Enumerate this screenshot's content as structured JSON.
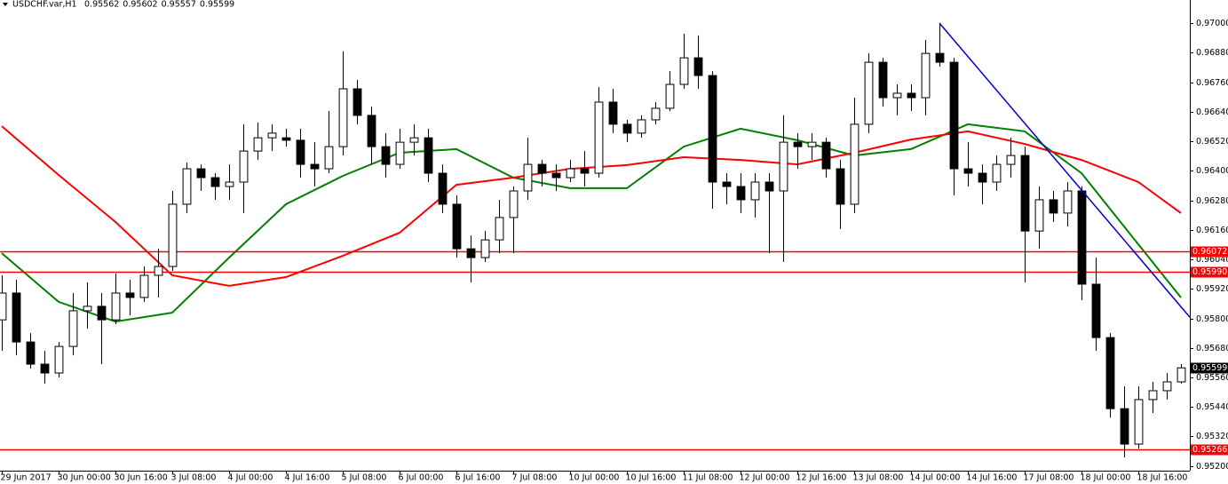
{
  "chart_data": {
    "type": "candlestick",
    "symbol": "USDCHF.var,H1",
    "header_values": [
      0.95562,
      0.95602,
      0.95557,
      0.95599
    ],
    "xlim": [
      -0.125,
      83.625
    ],
    "xticks": [
      {
        "value": 0,
        "label": "29 Jun 2017"
      },
      {
        "value": 4,
        "label": "30 Jun 00:00"
      },
      {
        "value": 8,
        "label": "30 Jun 16:00"
      },
      {
        "value": 12,
        "label": "3 Jul 08:00"
      },
      {
        "value": 16,
        "label": "4 Jul 00:00"
      },
      {
        "value": 20,
        "label": "4 Jul 16:00"
      },
      {
        "value": 24,
        "label": "5 Jul 08:00"
      },
      {
        "value": 28,
        "label": "6 Jul 00:00"
      },
      {
        "value": 32,
        "label": "6 Jul 16:00"
      },
      {
        "value": 36,
        "label": "7 Jul 08:00"
      },
      {
        "value": 40,
        "label": "10 Jul 00:00"
      },
      {
        "value": 44,
        "label": "10 Jul 16:00"
      },
      {
        "value": 48,
        "label": "11 Jul 08:00"
      },
      {
        "value": 52,
        "label": "12 Jul 00:00"
      },
      {
        "value": 56,
        "label": "12 Jul 16:00"
      },
      {
        "value": 60,
        "label": "13 Jul 08:00"
      },
      {
        "value": 64,
        "label": "14 Jul 00:00"
      },
      {
        "value": 68,
        "label": "14 Jul 16:00"
      },
      {
        "value": 72,
        "label": "17 Jul 08:00"
      },
      {
        "value": 76,
        "label": "18 Jul 00:00"
      },
      {
        "value": 80,
        "label": "18 Jul 16:00"
      }
    ],
    "ylim": [
      0.95181,
      0.97094
    ],
    "yticks": [
      {
        "value": 0.97,
        "label": "0.97000"
      },
      {
        "value": 0.9688,
        "label": "0.96880"
      },
      {
        "value": 0.9676,
        "label": "0.96760"
      },
      {
        "value": 0.9664,
        "label": "0.96640"
      },
      {
        "value": 0.9652,
        "label": "0.96520"
      },
      {
        "value": 0.964,
        "label": "0.96400"
      },
      {
        "value": 0.9628,
        "label": "0.96280"
      },
      {
        "value": 0.9616,
        "label": "0.96160"
      },
      {
        "value": 0.9604,
        "label": "0.96040"
      },
      {
        "value": 0.9592,
        "label": "0.95920"
      },
      {
        "value": 0.958,
        "label": "0.95800"
      },
      {
        "value": 0.9568,
        "label": "0.95680"
      },
      {
        "value": 0.9556,
        "label": "0.95560"
      },
      {
        "value": 0.9544,
        "label": "0.95440"
      },
      {
        "value": 0.9532,
        "label": "0.95320"
      },
      {
        "value": 0.952,
        "label": "0.95200"
      }
    ],
    "open": [
      0.95794,
      0.95903,
      0.95704,
      0.95614,
      0.95578,
      0.95686,
      0.95831,
      0.95849,
      0.95794,
      0.95903,
      0.95885,
      0.95975,
      0.96011,
      0.96264,
      0.96408,
      0.96372,
      0.96336,
      0.96354,
      0.9648,
      0.96534,
      0.96534,
      0.96524,
      0.96426,
      0.96408,
      0.96498,
      0.96733,
      0.96625,
      0.96498,
      0.96426,
      0.96516,
      0.96534,
      0.9639,
      0.96264,
      0.96083,
      0.96047,
      0.96119,
      0.9621,
      0.96318,
      0.96426,
      0.9639,
      0.96372,
      0.96408,
      0.9639,
      0.96679,
      0.96589,
      0.96553,
      0.96607,
      0.96654,
      0.96751,
      0.96859,
      0.96787,
      0.96354,
      0.96336,
      0.96282,
      0.96354,
      0.96318,
      0.96516,
      0.96498,
      0.96516,
      0.96408,
      0.96264,
      0.96589,
      0.96841,
      0.96697,
      0.96715,
      0.96697,
      0.96877,
      0.96841,
      0.96408,
      0.9639,
      0.96354,
      0.96426,
      0.96462,
      0.96155,
      0.96282,
      0.96228,
      0.96318,
      0.95939,
      0.95722,
      0.95433,
      0.95289,
      0.9547,
      0.95506,
      0.95542
    ],
    "high": [
      0.95975,
      0.95957,
      0.9574,
      0.95668,
      0.95704,
      0.95903,
      0.95946,
      0.95903,
      0.95982,
      0.95957,
      0.96011,
      0.96083,
      0.96318,
      0.96433,
      0.96426,
      0.9639,
      0.96426,
      0.96589,
      0.96596,
      0.96589,
      0.96571,
      0.96571,
      0.96516,
      0.96643,
      0.96885,
      0.96769,
      0.96661,
      0.96553,
      0.96571,
      0.96589,
      0.96571,
      0.96426,
      0.963,
      0.96137,
      0.96155,
      0.96282,
      0.96336,
      0.96534,
      0.96444,
      0.96426,
      0.96444,
      0.9648,
      0.9674,
      0.96733,
      0.96607,
      0.96625,
      0.96679,
      0.96805,
      0.96957,
      0.9695,
      0.96805,
      0.9639,
      0.9639,
      0.9639,
      0.9639,
      0.96625,
      0.96553,
      0.96553,
      0.96534,
      0.96444,
      0.96697,
      0.96877,
      0.96859,
      0.96751,
      0.96751,
      0.96932,
      0.97,
      0.96859,
      0.96516,
      0.96426,
      0.96462,
      0.96534,
      0.96498,
      0.96336,
      0.96318,
      0.96354,
      0.96336,
      0.96047,
      0.9574,
      0.95524,
      0.95524,
      0.95542,
      0.95578,
      0.95614
    ],
    "low": [
      0.95668,
      0.9565,
      0.95596,
      0.95535,
      0.9556,
      0.9565,
      0.95758,
      0.95614,
      0.95776,
      0.95812,
      0.95867,
      0.95885,
      0.95993,
      0.96228,
      0.96318,
      0.96282,
      0.96282,
      0.96228,
      0.96444,
      0.9648,
      0.96498,
      0.96372,
      0.96336,
      0.9639,
      0.96462,
      0.96589,
      0.96426,
      0.96372,
      0.96408,
      0.96462,
      0.96354,
      0.96228,
      0.96047,
      0.95946,
      0.96029,
      0.96065,
      0.96065,
      0.96282,
      0.96336,
      0.96318,
      0.96354,
      0.96336,
      0.96372,
      0.96553,
      0.96516,
      0.96534,
      0.96589,
      0.96643,
      0.96733,
      0.96733,
      0.96246,
      0.96264,
      0.96228,
      0.9621,
      0.96065,
      0.96029,
      0.96408,
      0.96444,
      0.96372,
      0.96163,
      0.96228,
      0.96553,
      0.96661,
      0.96625,
      0.96643,
      0.96625,
      0.96823,
      0.963,
      0.96336,
      0.96264,
      0.96318,
      0.96372,
      0.95946,
      0.96083,
      0.96192,
      0.96173,
      0.95874,
      0.95668,
      0.95397,
      0.95235,
      0.95271,
      0.95415,
      0.9547,
      0.95535
    ],
    "close": [
      0.95903,
      0.95704,
      0.95614,
      0.95578,
      0.95686,
      0.95831,
      0.95849,
      0.95794,
      0.95903,
      0.95885,
      0.95975,
      0.96011,
      0.96264,
      0.96408,
      0.96372,
      0.96336,
      0.96354,
      0.9648,
      0.96534,
      0.96553,
      0.96524,
      0.96426,
      0.96408,
      0.96498,
      0.96733,
      0.96625,
      0.96498,
      0.96426,
      0.96516,
      0.96534,
      0.9639,
      0.96264,
      0.96083,
      0.96047,
      0.96119,
      0.9621,
      0.96318,
      0.96426,
      0.9639,
      0.96372,
      0.96408,
      0.9639,
      0.96679,
      0.96589,
      0.96553,
      0.96607,
      0.96654,
      0.96751,
      0.96859,
      0.96787,
      0.96354,
      0.96336,
      0.96282,
      0.96354,
      0.96318,
      0.96516,
      0.96498,
      0.96516,
      0.96408,
      0.96264,
      0.96589,
      0.96841,
      0.96697,
      0.96715,
      0.96697,
      0.96877,
      0.96841,
      0.96408,
      0.9639,
      0.96354,
      0.96426,
      0.96462,
      0.96155,
      0.96282,
      0.96228,
      0.96318,
      0.95939,
      0.95722,
      0.95433,
      0.95289,
      0.9547,
      0.95506,
      0.95542,
      0.95599
    ],
    "moving_averages": [
      {
        "color": "#008000",
        "x": [
          0,
          4,
          8,
          12,
          16,
          20,
          24,
          28,
          32,
          36,
          40,
          44,
          48,
          52,
          56,
          60,
          64,
          68,
          72,
          76,
          80,
          83
        ],
        "values": [
          0.96065,
          0.95867,
          0.95787,
          0.95823,
          0.96047,
          0.96264,
          0.96379,
          0.96473,
          0.96488,
          0.96372,
          0.96329,
          0.96329,
          0.96498,
          0.96571,
          0.96524,
          0.96462,
          0.96488,
          0.96589,
          0.9656,
          0.9639,
          0.96101,
          0.95885
        ]
      },
      {
        "color": "#ff0000",
        "x": [
          0,
          4,
          8,
          12,
          16,
          20,
          24,
          28,
          32,
          36,
          40,
          44,
          48,
          52,
          56,
          60,
          64,
          68,
          72,
          76,
          80,
          83
        ],
        "values": [
          0.96581,
          0.96383,
          0.96192,
          0.95975,
          0.95932,
          0.95968,
          0.96054,
          0.96148,
          0.96343,
          0.96372,
          0.96408,
          0.96423,
          0.96455,
          0.96444,
          0.96426,
          0.96473,
          0.96527,
          0.9656,
          0.96509,
          0.96444,
          0.96354,
          0.96228
        ]
      }
    ],
    "trendline": {
      "color": "#0000cc",
      "x": [
        66,
        83.625
      ],
      "values": [
        0.97,
        0.95805
      ]
    },
    "levels": [
      0.96072,
      {
        "value": 0.9599,
        "label": "0.95990"
      },
      0.95266
    ],
    "level_color": "#ff0000",
    "price": 0.95599
  }
}
